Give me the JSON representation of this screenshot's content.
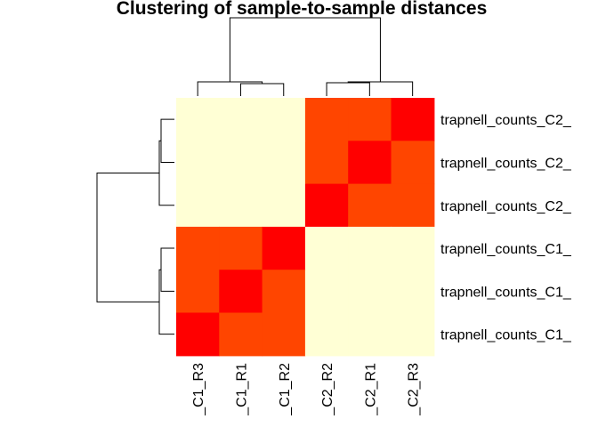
{
  "chart_data": {
    "type": "heatmap",
    "title": "Clustering of sample-to-sample distances",
    "row_labels": [
      "trapnell_counts_C2_",
      "trapnell_counts_C2_",
      "trapnell_counts_C2_",
      "trapnell_counts_C1_",
      "trapnell_counts_C1_",
      "trapnell_counts_C1_"
    ],
    "col_labels": [
      "_C1_R3",
      "_C1_R1",
      "_C1_R2",
      "_C2_R2",
      "_C2_R1",
      "_C2_R3"
    ],
    "values": [
      [
        3,
        3,
        3,
        1,
        1,
        0
      ],
      [
        3,
        3,
        3,
        1,
        0,
        1
      ],
      [
        3,
        3,
        3,
        0,
        1,
        1
      ],
      [
        1,
        1,
        0,
        3,
        3,
        3
      ],
      [
        1,
        0,
        1,
        3,
        3,
        3
      ],
      [
        0,
        1,
        1,
        3,
        3,
        3
      ]
    ],
    "colors": {
      "0": "#ff0000",
      "1": "#ff4500",
      "3": "#ffffd5"
    },
    "dendrogram": "both",
    "legend": "none"
  }
}
